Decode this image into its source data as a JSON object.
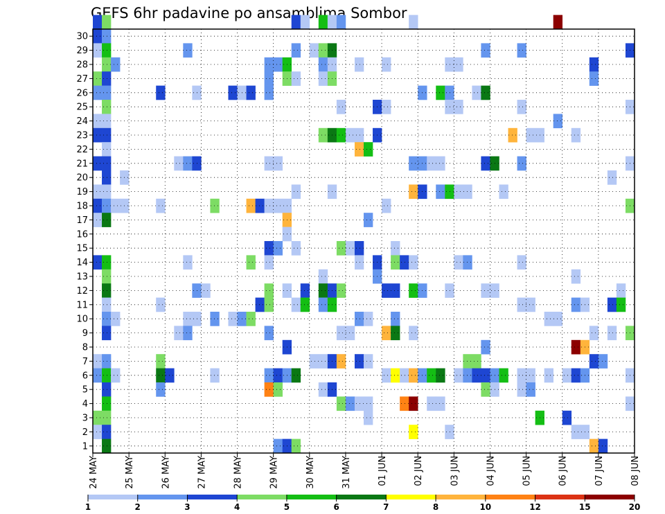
{
  "chart_data": {
    "type": "heatmap",
    "title": "GEFS 6hr padavine po ansamblima Sombor",
    "xlabel": "",
    "ylabel": "",
    "x_tick_labels": [
      "24 MAY",
      "25 MAY",
      "26 MAY",
      "27 MAY",
      "28 MAY",
      "29 MAY",
      "30 MAY",
      "31 MAY",
      "01 JUN",
      "02 JUN",
      "03 JUN",
      "04 JUN",
      "05 JUN",
      "06 JUN",
      "07 JUN",
      "08 JUN"
    ],
    "y_tick_labels": [
      "1",
      "2",
      "3",
      "4",
      "5",
      "6",
      "7",
      "8",
      "9",
      "10",
      "11",
      "12",
      "13",
      "14",
      "15",
      "16",
      "17",
      "18",
      "19",
      "20",
      "21",
      "22",
      "23",
      "24",
      "25",
      "26",
      "27",
      "28",
      "29",
      "30"
    ],
    "xlim_steps": [
      0,
      60
    ],
    "ylim": [
      0.5,
      30.5
    ],
    "grid": true,
    "steps_per_day": 4,
    "colorbar": {
      "ticks": [
        "1",
        "2",
        "3",
        "4",
        "5",
        "6",
        "7",
        "8",
        "10",
        "12",
        "15",
        "20"
      ],
      "bounds": [
        1,
        2,
        3,
        4,
        5,
        6,
        7,
        8,
        10,
        12,
        15,
        20
      ],
      "colors": [
        "#b4c8f5",
        "#6495ee",
        "#1e46d2",
        "#7ddc64",
        "#14be14",
        "#0a7814",
        "#ffff00",
        "#ffb43c",
        "#ff8214",
        "#dc3214",
        "#8c0000"
      ]
    },
    "cells": [
      [
        30,
        0,
        3
      ],
      [
        30,
        1,
        4
      ],
      [
        30,
        22,
        3
      ],
      [
        30,
        23,
        1
      ],
      [
        30,
        25,
        5
      ],
      [
        30,
        26,
        1
      ],
      [
        30,
        27,
        2
      ],
      [
        30,
        35,
        1
      ],
      [
        30,
        51,
        11
      ],
      [
        29,
        0,
        3
      ],
      [
        29,
        1,
        2
      ],
      [
        28,
        0,
        1
      ],
      [
        28,
        1,
        5
      ],
      [
        28,
        10,
        2
      ],
      [
        28,
        22,
        2
      ],
      [
        28,
        24,
        1
      ],
      [
        28,
        25,
        4
      ],
      [
        28,
        26,
        6
      ],
      [
        28,
        43,
        2
      ],
      [
        28,
        47,
        2
      ],
      [
        28,
        59,
        3
      ],
      [
        27,
        1,
        4
      ],
      [
        27,
        2,
        2
      ],
      [
        27,
        19,
        2
      ],
      [
        27,
        20,
        2
      ],
      [
        27,
        21,
        5
      ],
      [
        27,
        25,
        2
      ],
      [
        27,
        26,
        1
      ],
      [
        27,
        29,
        1
      ],
      [
        27,
        32,
        1
      ],
      [
        27,
        39,
        1
      ],
      [
        27,
        40,
        1
      ],
      [
        27,
        55,
        3
      ],
      [
        26,
        0,
        4
      ],
      [
        26,
        1,
        3
      ],
      [
        26,
        19,
        2
      ],
      [
        26,
        21,
        4
      ],
      [
        26,
        22,
        1
      ],
      [
        26,
        25,
        1
      ],
      [
        26,
        26,
        4
      ],
      [
        26,
        55,
        2
      ],
      [
        25,
        0,
        2
      ],
      [
        25,
        1,
        2
      ],
      [
        25,
        7,
        3
      ],
      [
        25,
        11,
        1
      ],
      [
        25,
        15,
        3
      ],
      [
        25,
        16,
        1
      ],
      [
        25,
        17,
        3
      ],
      [
        25,
        19,
        2
      ],
      [
        25,
        36,
        2
      ],
      [
        25,
        38,
        5
      ],
      [
        25,
        39,
        2
      ],
      [
        25,
        42,
        1
      ],
      [
        25,
        43,
        6
      ],
      [
        24,
        1,
        4
      ],
      [
        24,
        27,
        1
      ],
      [
        24,
        31,
        3
      ],
      [
        24,
        32,
        1
      ],
      [
        24,
        39,
        1
      ],
      [
        24,
        40,
        1
      ],
      [
        24,
        47,
        1
      ],
      [
        24,
        59,
        1
      ],
      [
        23,
        0,
        1
      ],
      [
        23,
        1,
        1
      ],
      [
        23,
        51,
        2
      ],
      [
        22,
        0,
        3
      ],
      [
        22,
        1,
        3
      ],
      [
        22,
        25,
        4
      ],
      [
        22,
        26,
        6
      ],
      [
        22,
        27,
        5
      ],
      [
        22,
        28,
        1
      ],
      [
        22,
        29,
        1
      ],
      [
        22,
        31,
        3
      ],
      [
        22,
        46,
        8
      ],
      [
        22,
        48,
        1
      ],
      [
        22,
        49,
        1
      ],
      [
        22,
        53,
        1
      ],
      [
        21,
        1,
        1
      ],
      [
        21,
        29,
        8
      ],
      [
        21,
        30,
        5
      ],
      [
        20,
        0,
        3
      ],
      [
        20,
        1,
        3
      ],
      [
        20,
        9,
        1
      ],
      [
        20,
        10,
        2
      ],
      [
        20,
        11,
        3
      ],
      [
        20,
        19,
        1
      ],
      [
        20,
        20,
        1
      ],
      [
        20,
        35,
        2
      ],
      [
        20,
        36,
        2
      ],
      [
        20,
        37,
        1
      ],
      [
        20,
        38,
        1
      ],
      [
        20,
        43,
        3
      ],
      [
        20,
        44,
        6
      ],
      [
        20,
        47,
        2
      ],
      [
        20,
        59,
        1
      ],
      [
        19,
        1,
        3
      ],
      [
        19,
        3,
        1
      ],
      [
        19,
        57,
        1
      ],
      [
        18,
        0,
        1
      ],
      [
        18,
        1,
        1
      ],
      [
        18,
        22,
        1
      ],
      [
        18,
        26,
        1
      ],
      [
        18,
        35,
        8
      ],
      [
        18,
        36,
        3
      ],
      [
        18,
        38,
        2
      ],
      [
        18,
        39,
        5
      ],
      [
        18,
        40,
        1
      ],
      [
        18,
        41,
        1
      ],
      [
        18,
        45,
        1
      ],
      [
        17,
        0,
        3
      ],
      [
        17,
        1,
        2
      ],
      [
        17,
        2,
        1
      ],
      [
        17,
        3,
        1
      ],
      [
        17,
        7,
        1
      ],
      [
        17,
        13,
        4
      ],
      [
        17,
        17,
        8
      ],
      [
        17,
        18,
        3
      ],
      [
        17,
        19,
        1
      ],
      [
        17,
        20,
        1
      ],
      [
        17,
        21,
        1
      ],
      [
        17,
        32,
        1
      ],
      [
        17,
        59,
        4
      ],
      [
        16,
        0,
        1
      ],
      [
        16,
        1,
        6
      ],
      [
        16,
        21,
        8
      ],
      [
        16,
        30,
        2
      ],
      [
        15,
        21,
        1
      ],
      [
        14,
        19,
        3
      ],
      [
        14,
        20,
        2
      ],
      [
        14,
        22,
        1
      ],
      [
        14,
        27,
        4
      ],
      [
        14,
        28,
        1
      ],
      [
        14,
        29,
        3
      ],
      [
        14,
        33,
        1
      ],
      [
        13,
        0,
        3
      ],
      [
        13,
        1,
        5
      ],
      [
        13,
        10,
        1
      ],
      [
        13,
        17,
        4
      ],
      [
        13,
        19,
        1
      ],
      [
        13,
        29,
        1
      ],
      [
        13,
        31,
        3
      ],
      [
        13,
        33,
        4
      ],
      [
        13,
        34,
        3
      ],
      [
        13,
        35,
        1
      ],
      [
        13,
        40,
        1
      ],
      [
        13,
        41,
        2
      ],
      [
        13,
        47,
        1
      ],
      [
        12,
        1,
        4
      ],
      [
        12,
        25,
        1
      ],
      [
        12,
        31,
        2
      ],
      [
        12,
        53,
        1
      ],
      [
        11,
        1,
        6
      ],
      [
        11,
        11,
        2
      ],
      [
        11,
        12,
        1
      ],
      [
        11,
        19,
        4
      ],
      [
        11,
        21,
        1
      ],
      [
        11,
        23,
        3
      ],
      [
        11,
        25,
        6
      ],
      [
        11,
        26,
        3
      ],
      [
        11,
        27,
        4
      ],
      [
        11,
        32,
        3
      ],
      [
        11,
        33,
        3
      ],
      [
        11,
        35,
        5
      ],
      [
        11,
        36,
        2
      ],
      [
        11,
        39,
        1
      ],
      [
        11,
        43,
        1
      ],
      [
        11,
        44,
        1
      ],
      [
        11,
        58,
        1
      ],
      [
        10,
        1,
        1
      ],
      [
        10,
        7,
        1
      ],
      [
        10,
        18,
        3
      ],
      [
        10,
        19,
        4
      ],
      [
        10,
        22,
        1
      ],
      [
        10,
        23,
        5
      ],
      [
        10,
        25,
        2
      ],
      [
        10,
        26,
        5
      ],
      [
        10,
        47,
        1
      ],
      [
        10,
        48,
        1
      ],
      [
        10,
        53,
        2
      ],
      [
        10,
        54,
        1
      ],
      [
        10,
        57,
        3
      ],
      [
        10,
        58,
        5
      ],
      [
        9,
        1,
        2
      ],
      [
        9,
        2,
        1
      ],
      [
        9,
        10,
        1
      ],
      [
        9,
        11,
        1
      ],
      [
        9,
        13,
        2
      ],
      [
        9,
        15,
        1
      ],
      [
        9,
        16,
        2
      ],
      [
        9,
        17,
        4
      ],
      [
        9,
        29,
        2
      ],
      [
        9,
        30,
        1
      ],
      [
        9,
        33,
        2
      ],
      [
        9,
        50,
        1
      ],
      [
        9,
        51,
        1
      ],
      [
        8,
        1,
        3
      ],
      [
        8,
        9,
        1
      ],
      [
        8,
        10,
        2
      ],
      [
        8,
        19,
        2
      ],
      [
        8,
        27,
        1
      ],
      [
        8,
        28,
        1
      ],
      [
        8,
        32,
        8
      ],
      [
        8,
        33,
        6
      ],
      [
        8,
        35,
        1
      ],
      [
        8,
        55,
        1
      ],
      [
        8,
        57,
        1
      ],
      [
        8,
        59,
        4
      ],
      [
        7,
        21,
        3
      ],
      [
        7,
        43,
        2
      ],
      [
        7,
        53,
        11
      ],
      [
        7,
        54,
        8
      ],
      [
        6,
        0,
        1
      ],
      [
        6,
        1,
        2
      ],
      [
        6,
        7,
        4
      ],
      [
        6,
        24,
        1
      ],
      [
        6,
        25,
        1
      ],
      [
        6,
        26,
        3
      ],
      [
        6,
        27,
        8
      ],
      [
        6,
        29,
        3
      ],
      [
        6,
        30,
        1
      ],
      [
        6,
        41,
        4
      ],
      [
        6,
        42,
        4
      ],
      [
        6,
        55,
        3
      ],
      [
        6,
        56,
        2
      ],
      [
        5,
        0,
        2
      ],
      [
        5,
        1,
        5
      ],
      [
        5,
        2,
        1
      ],
      [
        5,
        7,
        6
      ],
      [
        5,
        8,
        3
      ],
      [
        5,
        13,
        1
      ],
      [
        5,
        19,
        2
      ],
      [
        5,
        20,
        3
      ],
      [
        5,
        21,
        2
      ],
      [
        5,
        22,
        6
      ],
      [
        5,
        32,
        1
      ],
      [
        5,
        33,
        7
      ],
      [
        5,
        34,
        1
      ],
      [
        5,
        35,
        8
      ],
      [
        5,
        36,
        2
      ],
      [
        5,
        37,
        5
      ],
      [
        5,
        38,
        6
      ],
      [
        5,
        40,
        1
      ],
      [
        5,
        41,
        2
      ],
      [
        5,
        42,
        3
      ],
      [
        5,
        43,
        3
      ],
      [
        5,
        44,
        2
      ],
      [
        5,
        45,
        5
      ],
      [
        5,
        47,
        1
      ],
      [
        5,
        48,
        1
      ],
      [
        5,
        50,
        1
      ],
      [
        5,
        52,
        1
      ],
      [
        5,
        53,
        3
      ],
      [
        5,
        54,
        2
      ],
      [
        5,
        59,
        1
      ],
      [
        4,
        1,
        3
      ],
      [
        4,
        7,
        2
      ],
      [
        4,
        19,
        9
      ],
      [
        4,
        20,
        4
      ],
      [
        4,
        25,
        1
      ],
      [
        4,
        26,
        3
      ],
      [
        4,
        43,
        4
      ],
      [
        4,
        44,
        1
      ],
      [
        4,
        47,
        1
      ],
      [
        4,
        48,
        2
      ],
      [
        3,
        1,
        5
      ],
      [
        3,
        27,
        4
      ],
      [
        3,
        28,
        2
      ],
      [
        3,
        29,
        1
      ],
      [
        3,
        30,
        1
      ],
      [
        3,
        34,
        9
      ],
      [
        3,
        35,
        11
      ],
      [
        3,
        37,
        1
      ],
      [
        3,
        38,
        1
      ],
      [
        3,
        59,
        1
      ],
      [
        2,
        0,
        4
      ],
      [
        2,
        1,
        4
      ],
      [
        2,
        30,
        1
      ],
      [
        2,
        49,
        5
      ],
      [
        2,
        52,
        3
      ],
      [
        1,
        0,
        1
      ],
      [
        1,
        1,
        3
      ],
      [
        1,
        35,
        7
      ],
      [
        1,
        39,
        1
      ],
      [
        1,
        53,
        1
      ],
      [
        1,
        54,
        1
      ],
      [
        0,
        1,
        6
      ],
      [
        0,
        20,
        2
      ],
      [
        0,
        21,
        3
      ],
      [
        0,
        22,
        4
      ],
      [
        0,
        55,
        8
      ],
      [
        0,
        56,
        3
      ]
    ]
  }
}
